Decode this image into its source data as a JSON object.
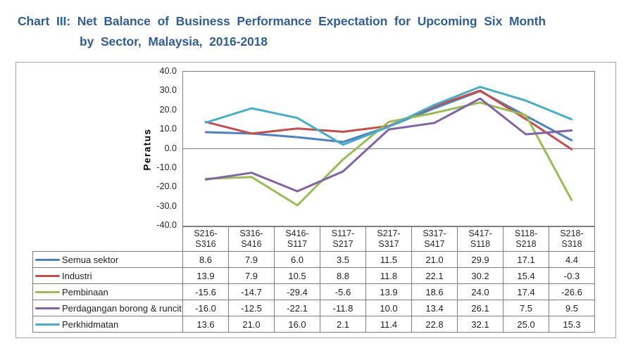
{
  "title": {
    "line1": "Chart III: Net Balance of Business Performance Expectation for Upcoming Six Month",
    "line2": "by Sector, Malaysia, 2016-2018"
  },
  "colors": {
    "title_text": "#335E91",
    "axis_line": "#808080",
    "table_border": "#7f7f7f",
    "container_border": "#a6a6a6",
    "text": "#262626"
  },
  "chart_data": {
    "type": "line",
    "title": "Chart III: Net Balance of Business Performance Expectation for Upcoming Six Month by Sector, Malaysia, 2016-2018",
    "xlabel": "",
    "ylabel": "Peratus",
    "ylim": [
      -40,
      40
    ],
    "ytick_step": 10,
    "yticks": [
      "40.0",
      "30.0",
      "20.0",
      "10.0",
      "0.0",
      "-10.0",
      "-20.0",
      "-30.0",
      "-40.0"
    ],
    "grid": "zero-line-only",
    "legend_position": "table-left",
    "line_width": 3,
    "categories": [
      "S216-S316",
      "S316-S416",
      "S416-S117",
      "S117-S217",
      "S217-S317",
      "S317-S417",
      "S417-S118",
      "S118-S218",
      "S218-S318"
    ],
    "series": [
      {
        "name": "Semua sektor",
        "color": "#4F81BD",
        "values": [
          8.6,
          7.9,
          6.0,
          3.5,
          11.5,
          21.0,
          29.9,
          17.1,
          4.4
        ]
      },
      {
        "name": "Industri",
        "color": "#C0504D",
        "values": [
          13.9,
          7.9,
          10.5,
          8.8,
          11.8,
          22.1,
          30.2,
          15.4,
          -0.3
        ]
      },
      {
        "name": "Pembinaan",
        "color": "#9BBB59",
        "values": [
          -15.6,
          -14.7,
          -29.4,
          -5.6,
          13.9,
          18.6,
          24.0,
          17.4,
          -26.6
        ]
      },
      {
        "name": "Perdagangan borong & runcit",
        "color": "#8064A2",
        "values": [
          -16.0,
          -12.5,
          -22.1,
          -11.8,
          10.0,
          13.4,
          26.1,
          7.5,
          9.5
        ]
      },
      {
        "name": "Perkhidmatan",
        "color": "#4BACC6",
        "values": [
          13.6,
          21.0,
          16.0,
          2.1,
          11.4,
          22.8,
          32.1,
          25.0,
          15.3
        ]
      }
    ]
  }
}
